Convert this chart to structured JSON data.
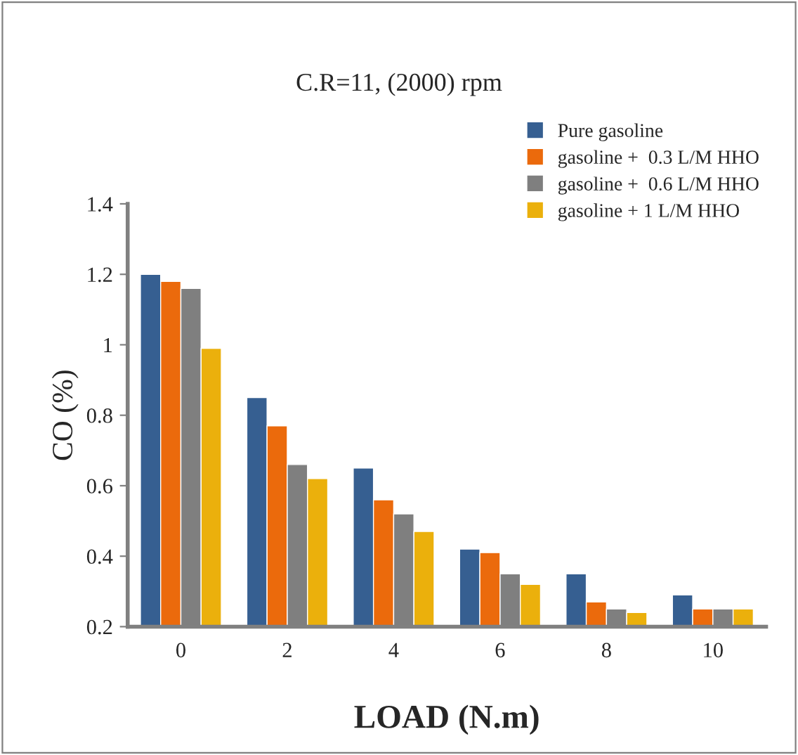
{
  "chart_data": {
    "type": "bar",
    "title": "C.R=11, (2000) rpm",
    "xlabel": "LOAD (N.m)",
    "ylabel": "CO (%)",
    "categories": [
      "0",
      "2",
      "4",
      "6",
      "8",
      "10"
    ],
    "series": [
      {
        "name": "Pure gasoline",
        "color": "#365f91",
        "values": [
          1.2,
          0.85,
          0.65,
          0.42,
          0.35,
          0.29
        ]
      },
      {
        "name": "gasoline +  0.3 L/M HHO",
        "color": "#eb6a0c",
        "values": [
          1.18,
          0.77,
          0.56,
          0.41,
          0.27,
          0.25
        ]
      },
      {
        "name": "gasoline +  0.6 L/M HHO",
        "color": "#7f7f7f",
        "values": [
          1.16,
          0.66,
          0.52,
          0.35,
          0.25,
          0.25
        ]
      },
      {
        "name": "gasoline + 1 L/M HHO",
        "color": "#ebb00c",
        "values": [
          0.99,
          0.62,
          0.47,
          0.32,
          0.24,
          0.25
        ]
      }
    ],
    "ylim": [
      0.2,
      1.4
    ],
    "yticks": [
      0.2,
      0.4,
      0.6,
      0.8,
      1,
      1.2,
      1.4
    ],
    "grid": false,
    "legend": "top right"
  }
}
